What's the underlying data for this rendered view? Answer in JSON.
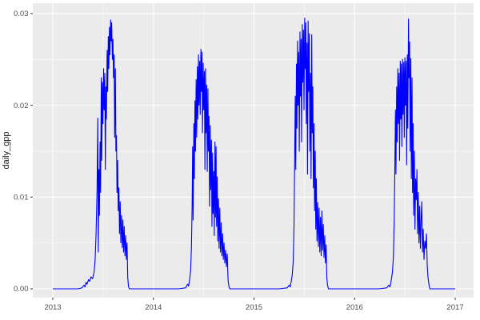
{
  "chart": {
    "title": "",
    "y_axis_title": "daily_gpp"
  },
  "chart_data": {
    "type": "line",
    "title": "",
    "xlabel": "",
    "ylabel": "daily_gpp",
    "legend": "none",
    "grid": "on",
    "panel_bg": "#EBEBEB",
    "grid_color": "#FFFFFF",
    "tick_label_color": "#4D4D4D",
    "axis_title_color": "#1a1a1a",
    "tick_mark_color": "#333333",
    "line_color": "#0000FF",
    "xlim": [
      2012.801,
      2017.183
    ],
    "ylim": [
      -0.00096,
      0.03113
    ],
    "x_ticks": [
      2013,
      2014,
      2015,
      2016,
      2017
    ],
    "x_tick_labels": [
      "2013",
      "2014",
      "2015",
      "2016",
      "2017"
    ],
    "y_ticks": [
      0,
      0.01,
      0.02,
      0.03
    ],
    "y_tick_labels": [
      "0.00",
      "0.01",
      "0.02",
      "0.03"
    ],
    "x_minor_ticks": [
      2013.5,
      2014.5,
      2015.5,
      2016.5
    ],
    "y_minor_ticks": [
      0.005,
      0.015,
      0.025
    ],
    "series": [
      {
        "name": "daily_gpp",
        "color": "#0000FF",
        "points": [
          [
            2013.0,
            0
          ],
          [
            2013.05,
            0
          ],
          [
            2013.1,
            0
          ],
          [
            2013.15,
            0
          ],
          [
            2013.2,
            0
          ],
          [
            2013.25,
            0
          ],
          [
            2013.29,
            0.0001
          ],
          [
            2013.31,
            0.0004
          ],
          [
            2013.32,
            0.0002
          ],
          [
            2013.33,
            0.0007
          ],
          [
            2013.34,
            0.0005
          ],
          [
            2013.355,
            0.001
          ],
          [
            2013.365,
            0.0008
          ],
          [
            2013.38,
            0.0013
          ],
          [
            2013.395,
            0.0011
          ],
          [
            2013.41,
            0.0018
          ],
          [
            2013.42,
            0.003
          ],
          [
            2013.43,
            0.006
          ],
          [
            2013.44,
            0.011
          ],
          [
            2013.447,
            0.0186
          ],
          [
            2013.452,
            0.004
          ],
          [
            2013.458,
            0.013
          ],
          [
            2013.463,
            0.008
          ],
          [
            2013.47,
            0.016
          ],
          [
            2013.475,
            0.0105
          ],
          [
            2013.482,
            0.023
          ],
          [
            2013.487,
            0.014
          ],
          [
            2013.493,
            0.0225
          ],
          [
            2013.498,
            0.018
          ],
          [
            2013.505,
            0.024
          ],
          [
            2013.51,
            0.0195
          ],
          [
            2013.517,
            0.0235
          ],
          [
            2013.522,
            0.013
          ],
          [
            2013.528,
            0.022
          ],
          [
            2013.533,
            0.0185
          ],
          [
            2013.54,
            0.026
          ],
          [
            2013.545,
            0.0215
          ],
          [
            2013.552,
            0.0275
          ],
          [
            2013.557,
            0.024
          ],
          [
            2013.563,
            0.0285
          ],
          [
            2013.568,
            0.0255
          ],
          [
            2013.575,
            0.0293
          ],
          [
            2013.58,
            0.027
          ],
          [
            2013.585,
            0.029
          ],
          [
            2013.592,
            0.025
          ],
          [
            2013.598,
            0.0272
          ],
          [
            2013.603,
            0.023
          ],
          [
            2013.61,
            0.0255
          ],
          [
            2013.615,
            0.0165
          ],
          [
            2013.622,
            0.024
          ],
          [
            2013.627,
            0.015
          ],
          [
            2013.633,
            0.0167
          ],
          [
            2013.638,
            0.0105
          ],
          [
            2013.645,
            0.014
          ],
          [
            2013.65,
            0.0085
          ],
          [
            2013.657,
            0.011
          ],
          [
            2013.663,
            0.006
          ],
          [
            2013.67,
            0.0095
          ],
          [
            2013.676,
            0.005
          ],
          [
            2013.683,
            0.008
          ],
          [
            2013.69,
            0.0045
          ],
          [
            2013.697,
            0.0075
          ],
          [
            2013.703,
            0.004
          ],
          [
            2013.71,
            0.0068
          ],
          [
            2013.717,
            0.0036
          ],
          [
            2013.724,
            0.0058
          ],
          [
            2013.731,
            0.0032
          ],
          [
            2013.738,
            0.005
          ],
          [
            2013.745,
            0.0012
          ],
          [
            2013.752,
            0.0003
          ],
          [
            2013.76,
            0
          ],
          [
            2013.85,
            0
          ],
          [
            2013.95,
            0
          ],
          [
            2014.05,
            0
          ],
          [
            2014.15,
            0
          ],
          [
            2014.25,
            0
          ],
          [
            2014.32,
            0.0001
          ],
          [
            2014.34,
            0.0005
          ],
          [
            2014.35,
            0.0003
          ],
          [
            2014.36,
            0.001
          ],
          [
            2014.37,
            0.002
          ],
          [
            2014.378,
            0.0045
          ],
          [
            2014.385,
            0.009
          ],
          [
            2014.39,
            0.0155
          ],
          [
            2014.395,
            0.0075
          ],
          [
            2014.402,
            0.018
          ],
          [
            2014.407,
            0.012
          ],
          [
            2014.413,
            0.0205
          ],
          [
            2014.418,
            0.015
          ],
          [
            2014.425,
            0.0228
          ],
          [
            2014.43,
            0.0165
          ],
          [
            2014.437,
            0.0242
          ],
          [
            2014.442,
            0.0185
          ],
          [
            2014.448,
            0.0255
          ],
          [
            2014.453,
            0.02
          ],
          [
            2014.46,
            0.0248
          ],
          [
            2014.465,
            0.019
          ],
          [
            2014.472,
            0.0261
          ],
          [
            2014.477,
            0.0215
          ],
          [
            2014.483,
            0.0258
          ],
          [
            2014.488,
            0.017
          ],
          [
            2014.495,
            0.0246
          ],
          [
            2014.5,
            0.0195
          ],
          [
            2014.507,
            0.0237
          ],
          [
            2014.512,
            0.013
          ],
          [
            2014.518,
            0.024
          ],
          [
            2014.523,
            0.017
          ],
          [
            2014.53,
            0.0222
          ],
          [
            2014.535,
            0.0128
          ],
          [
            2014.542,
            0.0218
          ],
          [
            2014.547,
            0.015
          ],
          [
            2014.553,
            0.0188
          ],
          [
            2014.558,
            0.009
          ],
          [
            2014.565,
            0.0178
          ],
          [
            2014.57,
            0.0108
          ],
          [
            2014.577,
            0.0162
          ],
          [
            2014.582,
            0.0068
          ],
          [
            2014.588,
            0.0148
          ],
          [
            2014.593,
            0.0082
          ],
          [
            2014.6,
            0.0128
          ],
          [
            2014.605,
            0.0058
          ],
          [
            2014.612,
            0.016
          ],
          [
            2014.617,
            0.0078
          ],
          [
            2014.623,
            0.0155
          ],
          [
            2014.628,
            0.0068
          ],
          [
            2014.635,
            0.0122
          ],
          [
            2014.64,
            0.0052
          ],
          [
            2014.647,
            0.0098
          ],
          [
            2014.653,
            0.0044
          ],
          [
            2014.66,
            0.0088
          ],
          [
            2014.667,
            0.004
          ],
          [
            2014.674,
            0.0072
          ],
          [
            2014.681,
            0.0036
          ],
          [
            2014.688,
            0.006
          ],
          [
            2014.695,
            0.0032
          ],
          [
            2014.702,
            0.005
          ],
          [
            2014.71,
            0.0028
          ],
          [
            2014.718,
            0.0042
          ],
          [
            2014.726,
            0.0024
          ],
          [
            2014.734,
            0.0038
          ],
          [
            2014.742,
            0.001
          ],
          [
            2014.75,
            0.0003
          ],
          [
            2014.758,
            0
          ],
          [
            2014.85,
            0
          ],
          [
            2014.95,
            0
          ],
          [
            2015.05,
            0
          ],
          [
            2015.15,
            0
          ],
          [
            2015.25,
            0
          ],
          [
            2015.33,
            0.0001
          ],
          [
            2015.35,
            0.0004
          ],
          [
            2015.36,
            0.0002
          ],
          [
            2015.37,
            0.0008
          ],
          [
            2015.38,
            0.0015
          ],
          [
            2015.39,
            0.003
          ],
          [
            2015.398,
            0.007
          ],
          [
            2015.404,
            0.014
          ],
          [
            2015.41,
            0.021
          ],
          [
            2015.415,
            0.013
          ],
          [
            2015.422,
            0.0245
          ],
          [
            2015.427,
            0.0175
          ],
          [
            2015.433,
            0.027
          ],
          [
            2015.438,
            0.02
          ],
          [
            2015.445,
            0.0258
          ],
          [
            2015.45,
            0.015
          ],
          [
            2015.457,
            0.028
          ],
          [
            2015.462,
            0.021
          ],
          [
            2015.468,
            0.0272
          ],
          [
            2015.473,
            0.016
          ],
          [
            2015.48,
            0.0288
          ],
          [
            2015.485,
            0.0225
          ],
          [
            2015.492,
            0.0282
          ],
          [
            2015.497,
            0.0195
          ],
          [
            2015.504,
            0.0295
          ],
          [
            2015.509,
            0.024
          ],
          [
            2015.515,
            0.029
          ],
          [
            2015.52,
            0.018
          ],
          [
            2015.527,
            0.0268
          ],
          [
            2015.532,
            0.0125
          ],
          [
            2015.538,
            0.0292
          ],
          [
            2015.543,
            0.0215
          ],
          [
            2015.55,
            0.0278
          ],
          [
            2015.555,
            0.015
          ],
          [
            2015.562,
            0.0235
          ],
          [
            2015.567,
            0.012
          ],
          [
            2015.574,
            0.0277
          ],
          [
            2015.579,
            0.017
          ],
          [
            2015.585,
            0.022
          ],
          [
            2015.59,
            0.011
          ],
          [
            2015.597,
            0.018
          ],
          [
            2015.602,
            0.0085
          ],
          [
            2015.609,
            0.015
          ],
          [
            2015.614,
            0.0065
          ],
          [
            2015.62,
            0.012
          ],
          [
            2015.626,
            0.0052
          ],
          [
            2015.633,
            0.0094
          ],
          [
            2015.64,
            0.0046
          ],
          [
            2015.647,
            0.0088
          ],
          [
            2015.654,
            0.004
          ],
          [
            2015.661,
            0.0078
          ],
          [
            2015.668,
            0.0036
          ],
          [
            2015.675,
            0.0085
          ],
          [
            2015.682,
            0.0042
          ],
          [
            2015.689,
            0.007
          ],
          [
            2015.696,
            0.0034
          ],
          [
            2015.703,
            0.0058
          ],
          [
            2015.71,
            0.0028
          ],
          [
            2015.717,
            0.0048
          ],
          [
            2015.724,
            0.0012
          ],
          [
            2015.731,
            0.0004
          ],
          [
            2015.74,
            0
          ],
          [
            2015.84,
            0
          ],
          [
            2015.94,
            0
          ],
          [
            2016.04,
            0
          ],
          [
            2016.14,
            0
          ],
          [
            2016.24,
            0
          ],
          [
            2016.32,
            0.0001
          ],
          [
            2016.34,
            0.0004
          ],
          [
            2016.352,
            0.0002
          ],
          [
            2016.364,
            0.0009
          ],
          [
            2016.376,
            0.0018
          ],
          [
            2016.386,
            0.0035
          ],
          [
            2016.394,
            0.0075
          ],
          [
            2016.4,
            0.013
          ],
          [
            2016.406,
            0.0195
          ],
          [
            2016.411,
            0.0125
          ],
          [
            2016.418,
            0.022
          ],
          [
            2016.423,
            0.016
          ],
          [
            2016.43,
            0.024
          ],
          [
            2016.435,
            0.018
          ],
          [
            2016.442,
            0.0235
          ],
          [
            2016.447,
            0.014
          ],
          [
            2016.454,
            0.0248
          ],
          [
            2016.459,
            0.0185
          ],
          [
            2016.465,
            0.0245
          ],
          [
            2016.47,
            0.0155
          ],
          [
            2016.477,
            0.025
          ],
          [
            2016.482,
            0.019
          ],
          [
            2016.489,
            0.0247
          ],
          [
            2016.494,
            0.0165
          ],
          [
            2016.5,
            0.0252
          ],
          [
            2016.505,
            0.02
          ],
          [
            2016.512,
            0.0248
          ],
          [
            2016.517,
            0.0135
          ],
          [
            2016.524,
            0.0255
          ],
          [
            2016.529,
            0.0175
          ],
          [
            2016.536,
            0.0294
          ],
          [
            2016.541,
            0.023
          ],
          [
            2016.547,
            0.0269
          ],
          [
            2016.552,
            0.015
          ],
          [
            2016.559,
            0.0251
          ],
          [
            2016.564,
            0.012
          ],
          [
            2016.571,
            0.023
          ],
          [
            2016.576,
            0.0105
          ],
          [
            2016.582,
            0.018
          ],
          [
            2016.587,
            0.008
          ],
          [
            2016.594,
            0.015
          ],
          [
            2016.6,
            0.0065
          ],
          [
            2016.607,
            0.012
          ],
          [
            2016.613,
            0.0097
          ],
          [
            2016.62,
            0.013
          ],
          [
            2016.626,
            0.006
          ],
          [
            2016.633,
            0.0105
          ],
          [
            2016.64,
            0.005
          ],
          [
            2016.647,
            0.009
          ],
          [
            2016.654,
            0.0044
          ],
          [
            2016.661,
            0.0075
          ],
          [
            2016.668,
            0.0095
          ],
          [
            2016.675,
            0.004
          ],
          [
            2016.682,
            0.0065
          ],
          [
            2016.69,
            0.0032
          ],
          [
            2016.698,
            0.0052
          ],
          [
            2016.706,
            0.0044
          ],
          [
            2016.714,
            0.006
          ],
          [
            2016.722,
            0.0026
          ],
          [
            2016.73,
            0.0012
          ],
          [
            2016.74,
            0.0004
          ],
          [
            2016.748,
            0
          ],
          [
            2016.85,
            0
          ],
          [
            2016.95,
            0
          ],
          [
            2017.0,
            0
          ]
        ]
      }
    ]
  }
}
